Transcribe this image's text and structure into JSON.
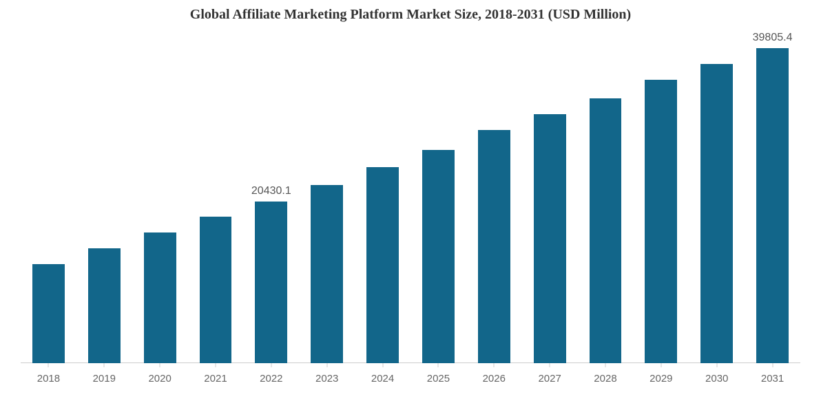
{
  "chart": {
    "type": "bar",
    "title": "Global Affiliate Marketing Platform Market Size, 2018-2031 (USD Million)",
    "title_fontsize": 20,
    "title_color": "#333333",
    "categories": [
      "2018",
      "2019",
      "2020",
      "2021",
      "2022",
      "2023",
      "2024",
      "2025",
      "2026",
      "2027",
      "2028",
      "2029",
      "2030",
      "2031"
    ],
    "values": [
      12500,
      14500,
      16500,
      18500,
      20430.1,
      22500,
      24800,
      27000,
      29500,
      31500,
      33500,
      35800,
      37800,
      39805.4
    ],
    "value_labels": {
      "4": "20430.1",
      "13": "39805.4"
    },
    "bar_color": "#12668a",
    "bar_width_ratio": 0.58,
    "ylim": [
      0,
      42000
    ],
    "background_color": "#ffffff",
    "axis_color": "#cccccc",
    "xlabel_color": "#666666",
    "xlabel_fontsize": 15,
    "value_label_color": "#555555",
    "value_label_fontsize": 16
  }
}
